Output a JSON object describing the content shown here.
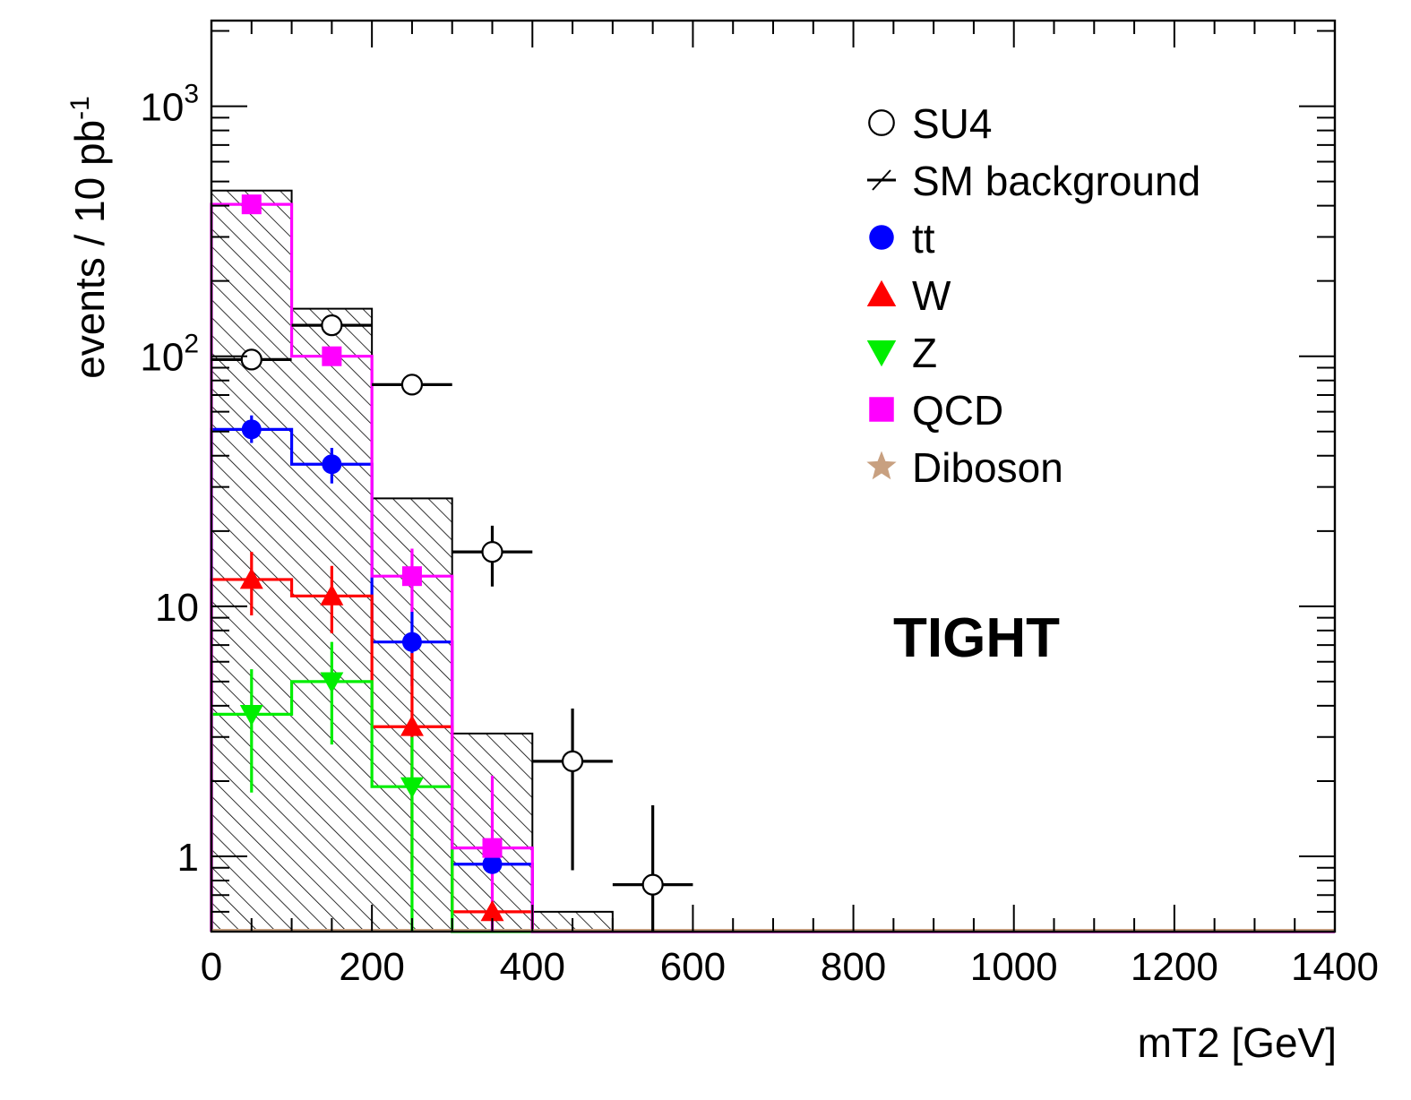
{
  "chart_data": {
    "type": "histogram",
    "xlabel": "mT2 [GeV]",
    "ylabel": "events / 10 pb",
    "ylabel_sup": "-1",
    "xlim": [
      0,
      1400
    ],
    "ylim": [
      0.5,
      2200
    ],
    "yscale": "log",
    "bin_edges": [
      0,
      100,
      200,
      300,
      400,
      500,
      600,
      700,
      800,
      900,
      1000,
      1100,
      1200,
      1300,
      1400
    ],
    "x_ticks": [
      0,
      200,
      400,
      600,
      800,
      1000,
      1200,
      1400
    ],
    "x_tick_labels": [
      "0",
      "200",
      "400",
      "600",
      "800",
      "1000",
      "1200",
      "1400"
    ],
    "y_ticks": [
      {
        "value": 1,
        "label": "1",
        "exp": ""
      },
      {
        "value": 10,
        "label": "10",
        "exp": ""
      },
      {
        "value": 100,
        "label": "10",
        "exp": "2"
      },
      {
        "value": 1000,
        "label": "10",
        "exp": "3"
      }
    ],
    "annotation": "TIGHT",
    "legend_position": "top-right",
    "series": [
      {
        "name": "SM background",
        "style": "hatched-histogram",
        "color": "#000000",
        "values": [
          460,
          155,
          27,
          3.1,
          0.6,
          0,
          0,
          0,
          0,
          0,
          0,
          0,
          0,
          0
        ]
      },
      {
        "name": "tt",
        "style": "step-markers",
        "marker": "circle",
        "color": "#0000ff",
        "values": [
          51,
          37,
          7.2,
          0.93,
          0,
          0,
          0,
          0,
          0,
          0,
          0,
          0,
          0,
          0
        ],
        "err_low": [
          45,
          31,
          4.8,
          0,
          0,
          0,
          0,
          0,
          0,
          0,
          0,
          0,
          0,
          0
        ],
        "err_high": [
          58,
          43,
          9.5,
          0,
          0,
          0,
          0,
          0,
          0,
          0,
          0,
          0,
          0,
          0
        ]
      },
      {
        "name": "W",
        "style": "step-markers",
        "marker": "triangle-up",
        "color": "#ff0000",
        "values": [
          12.8,
          11,
          3.3,
          0.6,
          0,
          0,
          0,
          0,
          0,
          0,
          0,
          0,
          0,
          0
        ],
        "err_low": [
          9.2,
          7.8,
          0.9,
          0,
          0,
          0,
          0,
          0,
          0,
          0,
          0,
          0,
          0,
          0
        ],
        "err_high": [
          16.5,
          14.5,
          6.5,
          0,
          0,
          0,
          0,
          0,
          0,
          0,
          0,
          0,
          0,
          0
        ]
      },
      {
        "name": "Z",
        "style": "step-markers",
        "marker": "triangle-down",
        "color": "#00ee00",
        "values": [
          3.7,
          5.0,
          1.9,
          0,
          0,
          0,
          0,
          0,
          0,
          0,
          0,
          0,
          0,
          0
        ],
        "err_low": [
          1.8,
          2.8,
          0.5,
          0,
          0,
          0,
          0,
          0,
          0,
          0,
          0,
          0,
          0,
          0
        ],
        "err_high": [
          5.6,
          7.2,
          3.0,
          0,
          0,
          0,
          0,
          0,
          0,
          0,
          0,
          0,
          0,
          0
        ]
      },
      {
        "name": "QCD",
        "style": "step-markers",
        "marker": "square",
        "color": "#ff00ff",
        "values": [
          405,
          100,
          13.2,
          1.08,
          0,
          0,
          0,
          0,
          0,
          0,
          0,
          0,
          0,
          0
        ],
        "err_low": [
          405,
          100,
          9.5,
          0.5,
          0,
          0,
          0,
          0,
          0,
          0,
          0,
          0,
          0,
          0
        ],
        "err_high": [
          405,
          100,
          17,
          2.1,
          0,
          0,
          0,
          0,
          0,
          0,
          0,
          0,
          0,
          0
        ]
      },
      {
        "name": "Diboson",
        "style": "step-markers",
        "marker": "star",
        "color": "#c8a080",
        "values": [
          0,
          0,
          0,
          0,
          0,
          0,
          0,
          0,
          0,
          0,
          0,
          0,
          0,
          0
        ]
      },
      {
        "name": "SU4",
        "style": "open-markers",
        "marker": "open-circle",
        "color": "#000000",
        "values": [
          97,
          133,
          77,
          16.5,
          2.4,
          0.77,
          0,
          0,
          0,
          0,
          0,
          0,
          0,
          0
        ],
        "err_low": [
          97,
          133,
          70,
          12,
          0.88,
          0.42,
          0,
          0,
          0,
          0,
          0,
          0,
          0,
          0
        ],
        "err_high": [
          97,
          133,
          84,
          21,
          3.9,
          1.6,
          0,
          0,
          0,
          0,
          0,
          0,
          0,
          0
        ]
      }
    ]
  }
}
